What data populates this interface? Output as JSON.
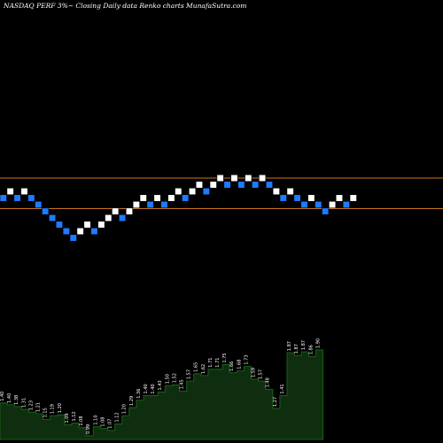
{
  "header": {
    "title": "NASDAQ PERF 3%~  Closing Daily data  Renko  charts MunafaSutra.com"
  },
  "colors": {
    "background": "#000000",
    "up_brick": "#ffffff",
    "down_brick": "#1e7bff",
    "brick_outline": "#000000",
    "reference_line": "#c8781e",
    "volume_fill": "#0f2e0f",
    "volume_edge": "#1a5e1a",
    "volume_label": "#ffffff"
  },
  "chart_data": {
    "type": "renko",
    "title": "NASDAQ PERF 3%~  Closing Daily data  Renko  charts MunafaSutra.com",
    "brick_size_percent": 3,
    "reference_lines": [
      1.75,
      1.52
    ],
    "bricks": [
      {
        "direction": "down",
        "price": 1.6
      },
      {
        "direction": "up",
        "price": 1.65
      },
      {
        "direction": "down",
        "price": 1.6
      },
      {
        "direction": "up",
        "price": 1.65
      },
      {
        "direction": "down",
        "price": 1.6
      },
      {
        "direction": "down",
        "price": 1.55
      },
      {
        "direction": "down",
        "price": 1.5
      },
      {
        "direction": "down",
        "price": 1.45
      },
      {
        "direction": "down",
        "price": 1.4
      },
      {
        "direction": "down",
        "price": 1.35
      },
      {
        "direction": "down",
        "price": 1.3
      },
      {
        "direction": "up",
        "price": 1.35
      },
      {
        "direction": "up",
        "price": 1.4
      },
      {
        "direction": "down",
        "price": 1.35
      },
      {
        "direction": "up",
        "price": 1.4
      },
      {
        "direction": "up",
        "price": 1.45
      },
      {
        "direction": "up",
        "price": 1.5
      },
      {
        "direction": "down",
        "price": 1.45
      },
      {
        "direction": "up",
        "price": 1.5
      },
      {
        "direction": "up",
        "price": 1.55
      },
      {
        "direction": "up",
        "price": 1.6
      },
      {
        "direction": "down",
        "price": 1.55
      },
      {
        "direction": "up",
        "price": 1.6
      },
      {
        "direction": "down",
        "price": 1.55
      },
      {
        "direction": "up",
        "price": 1.6
      },
      {
        "direction": "up",
        "price": 1.65
      },
      {
        "direction": "down",
        "price": 1.6
      },
      {
        "direction": "up",
        "price": 1.65
      },
      {
        "direction": "up",
        "price": 1.7
      },
      {
        "direction": "down",
        "price": 1.65
      },
      {
        "direction": "up",
        "price": 1.7
      },
      {
        "direction": "up",
        "price": 1.75
      },
      {
        "direction": "down",
        "price": 1.7
      },
      {
        "direction": "up",
        "price": 1.75
      },
      {
        "direction": "down",
        "price": 1.7
      },
      {
        "direction": "up",
        "price": 1.75
      },
      {
        "direction": "down",
        "price": 1.7
      },
      {
        "direction": "up",
        "price": 1.75
      },
      {
        "direction": "down",
        "price": 1.7
      },
      {
        "direction": "up",
        "price": 1.65
      },
      {
        "direction": "down",
        "price": 1.6
      },
      {
        "direction": "up",
        "price": 1.65
      },
      {
        "direction": "down",
        "price": 1.6
      },
      {
        "direction": "down",
        "price": 1.55
      },
      {
        "direction": "up",
        "price": 1.6
      },
      {
        "direction": "down",
        "price": 1.55
      },
      {
        "direction": "down",
        "price": 1.5
      },
      {
        "direction": "up",
        "price": 1.55
      },
      {
        "direction": "up",
        "price": 1.6
      },
      {
        "direction": "down",
        "price": 1.55
      },
      {
        "direction": "up",
        "price": 1.6
      }
    ],
    "volume_labels": [
      "1.40",
      "1.40",
      "1.38",
      "1.31",
      "1.23",
      "1.21",
      "1.15",
      "1.19",
      "1.20",
      "1.09",
      "1.12",
      "1.08",
      "0.99",
      "1.10",
      "1.08",
      "1.07",
      "1.12",
      "1.20",
      "1.29",
      "1.36",
      "1.40",
      "1.40",
      "1.43",
      "1.50",
      "1.52",
      "1.45",
      "1.57",
      "1.65",
      "1.62",
      "1.71",
      "1.71",
      "1.75",
      "1.66",
      "1.68",
      "1.73",
      "1.59",
      "1.57",
      "1.48",
      "1.27",
      "1.41",
      "1.87",
      "1.87",
      "1.87",
      "1.86",
      "1.90"
    ],
    "volume_heights": [
      0.4,
      0.38,
      0.36,
      0.33,
      0.3,
      0.28,
      0.22,
      0.26,
      0.27,
      0.16,
      0.18,
      0.13,
      0.04,
      0.14,
      0.12,
      0.1,
      0.17,
      0.26,
      0.35,
      0.43,
      0.48,
      0.48,
      0.52,
      0.59,
      0.6,
      0.53,
      0.64,
      0.72,
      0.7,
      0.77,
      0.77,
      0.82,
      0.73,
      0.75,
      0.8,
      0.66,
      0.64,
      0.55,
      0.34,
      0.48,
      0.95,
      0.92,
      0.96,
      0.91,
      0.98
    ]
  }
}
